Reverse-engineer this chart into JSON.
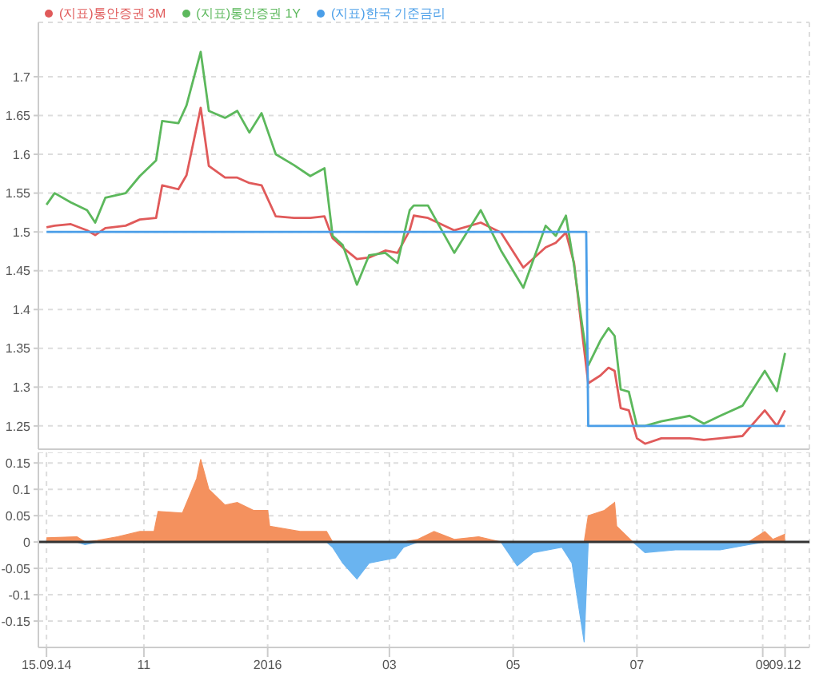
{
  "chart_data": [
    {
      "type": "line",
      "legend": "top left",
      "grid": true,
      "tick_labels": "y",
      "x": [
        "2015-09-14",
        "2015-09-18",
        "2015-09-26",
        "2015-10-04",
        "2015-10-08",
        "2015-10-13",
        "2015-10-23",
        "2015-10-30",
        "2015-11-07",
        "2015-11-10",
        "2015-11-18",
        "2015-11-22",
        "2015-11-29",
        "2015-12-03",
        "2015-12-11",
        "2015-12-17",
        "2015-12-23",
        "2015-12-29",
        "2016-01-05",
        "2016-01-14",
        "2016-01-22",
        "2016-01-29",
        "2016-02-02",
        "2016-02-07",
        "2016-02-14",
        "2016-02-20",
        "2016-02-28",
        "2016-03-05",
        "2016-03-11",
        "2016-03-13",
        "2016-03-20",
        "2016-04-02",
        "2016-04-15",
        "2016-04-25",
        "2016-05-06",
        "2016-05-17",
        "2016-05-22",
        "2016-05-27",
        "2016-05-31",
        "2016-06-04",
        "2016-06-07",
        "2016-06-13",
        "2016-06-17",
        "2016-06-20",
        "2016-06-23",
        "2016-06-27",
        "2016-07-01",
        "2016-07-05",
        "2016-07-13",
        "2016-07-27",
        "2016-08-03",
        "2016-08-11",
        "2016-08-22",
        "2016-09-02",
        "2016-09-08",
        "2016-09-12"
      ],
      "xlim": [
        "2015-09-10",
        "2016-09-24"
      ],
      "xticks": [
        {
          "value": "2015-09-14",
          "label": null
        },
        {
          "value": "2015-11-01",
          "label": null
        },
        {
          "value": "2016-01-01",
          "label": null
        },
        {
          "value": "2016-03-01",
          "label": null
        },
        {
          "value": "2016-05-01",
          "label": null
        },
        {
          "value": "2016-07-01",
          "label": null
        },
        {
          "value": "2016-09-01",
          "label": null
        },
        {
          "value": "2016-09-12",
          "label": null
        }
      ],
      "ylim": [
        1.22,
        1.77
      ],
      "yticks": [
        1.25,
        1.3,
        1.35,
        1.4,
        1.45,
        1.5,
        1.55,
        1.6,
        1.65,
        1.7
      ],
      "series": [
        {
          "name": "(지표)통안증권 3M",
          "color": "#e05a5a",
          "values": [
            1.506,
            1.508,
            1.51,
            1.502,
            1.496,
            1.505,
            1.508,
            1.516,
            1.518,
            1.56,
            1.555,
            1.573,
            1.66,
            1.585,
            1.57,
            1.57,
            1.563,
            1.56,
            1.52,
            1.518,
            1.518,
            1.52,
            1.492,
            1.48,
            1.465,
            1.467,
            1.476,
            1.473,
            1.502,
            1.521,
            1.518,
            1.502,
            1.512,
            1.499,
            1.454,
            1.48,
            1.486,
            1.499,
            1.46,
            1.37,
            1.305,
            1.315,
            1.325,
            1.321,
            1.273,
            1.27,
            1.234,
            1.227,
            1.234,
            1.234,
            1.232,
            1.234,
            1.237,
            1.27,
            1.25,
            1.27
          ]
        },
        {
          "name": "(지표)통안증권 1Y",
          "color": "#5cb85c",
          "values": [
            1.535,
            1.55,
            1.538,
            1.528,
            1.512,
            1.544,
            1.55,
            1.572,
            1.592,
            1.643,
            1.64,
            1.663,
            1.732,
            1.656,
            1.647,
            1.656,
            1.628,
            1.653,
            1.6,
            1.586,
            1.572,
            1.582,
            1.495,
            1.483,
            1.432,
            1.47,
            1.473,
            1.46,
            1.528,
            1.534,
            1.534,
            1.473,
            1.528,
            1.476,
            1.428,
            1.508,
            1.495,
            1.521,
            1.457,
            1.38,
            1.328,
            1.36,
            1.376,
            1.366,
            1.297,
            1.294,
            1.25,
            1.25,
            1.256,
            1.263,
            1.253,
            1.263,
            1.276,
            1.321,
            1.295,
            1.344
          ]
        },
        {
          "name": "(지표)한국 기준금리",
          "color": "#4a9ee8",
          "x": [
            "2015-09-14",
            "2016-06-06",
            "2016-06-07",
            "2016-09-12"
          ],
          "values": [
            1.5,
            1.5,
            1.25,
            1.25
          ]
        }
      ]
    },
    {
      "type": "area",
      "grid": true,
      "x": [
        "2015-09-14",
        "2015-09-29",
        "2015-10-03",
        "2015-10-09",
        "2015-10-19",
        "2015-10-30",
        "2015-11-06",
        "2015-11-08",
        "2015-11-20",
        "2015-11-27",
        "2015-11-29",
        "2015-12-03",
        "2015-12-11",
        "2015-12-17",
        "2015-12-25",
        "2016-01-01",
        "2016-01-02",
        "2016-01-17",
        "2016-01-30",
        "2016-02-02",
        "2016-02-07",
        "2016-02-14",
        "2016-02-20",
        "2016-03-04",
        "2016-03-08",
        "2016-03-15",
        "2016-03-23",
        "2016-04-02",
        "2016-04-14",
        "2016-04-25",
        "2016-05-03",
        "2016-05-11",
        "2016-05-25",
        "2016-05-30",
        "2016-06-05",
        "2016-06-07",
        "2016-06-15",
        "2016-06-20",
        "2016-06-21",
        "2016-06-29",
        "2016-07-05",
        "2016-07-20",
        "2016-08-11",
        "2016-08-25",
        "2016-09-02",
        "2016-09-06",
        "2016-09-12"
      ],
      "xlim": [
        "2015-09-10",
        "2016-09-24"
      ],
      "xticks": [
        {
          "value": "2015-09-14",
          "label": "15.09.14"
        },
        {
          "value": "2015-11-01",
          "label": "11"
        },
        {
          "value": "2016-01-01",
          "label": "2016"
        },
        {
          "value": "2016-03-01",
          "label": "03"
        },
        {
          "value": "2016-05-01",
          "label": "05"
        },
        {
          "value": "2016-07-01",
          "label": "07"
        },
        {
          "value": "2016-09-01",
          "label": "09"
        },
        {
          "value": "2016-09-12",
          "label": "09.12"
        }
      ],
      "ylim": [
        -0.2,
        0.17
      ],
      "yticks": [
        -0.15,
        -0.1,
        -0.05,
        0,
        0.05,
        0.1,
        0.15
      ],
      "ref_lines": [
        {
          "axis": "y",
          "value": 0,
          "color": "#333333"
        }
      ],
      "series": [
        {
          "color": "#f4915e",
          "values": [
            0.008,
            0.01,
            0,
            0.003,
            0.01,
            0.02,
            0.02,
            0.058,
            0.055,
            0.12,
            0.157,
            0.1,
            0.07,
            0.075,
            0.06,
            0.06,
            0.03,
            0.02,
            0.02,
            0,
            0,
            0,
            0,
            0,
            0,
            0.005,
            0.02,
            0.005,
            0.01,
            0,
            0,
            0,
            0,
            0,
            0,
            0.05,
            0.06,
            0.075,
            0.03,
            0,
            0,
            0,
            0,
            0,
            0.02,
            0.005,
            0.015
          ]
        },
        {
          "color": "#6ab4f0",
          "values": [
            0,
            0,
            -0.005,
            0,
            0,
            0,
            0,
            0,
            0,
            0,
            0,
            0,
            0,
            0,
            0,
            0,
            0,
            0,
            0,
            -0.01,
            -0.04,
            -0.07,
            -0.04,
            -0.03,
            -0.01,
            0,
            0,
            0,
            0,
            0,
            -0.045,
            -0.02,
            -0.01,
            -0.04,
            -0.19,
            0,
            0,
            0,
            0,
            0,
            -0.02,
            -0.015,
            -0.015,
            -0.005,
            0,
            0,
            0
          ]
        }
      ]
    }
  ]
}
